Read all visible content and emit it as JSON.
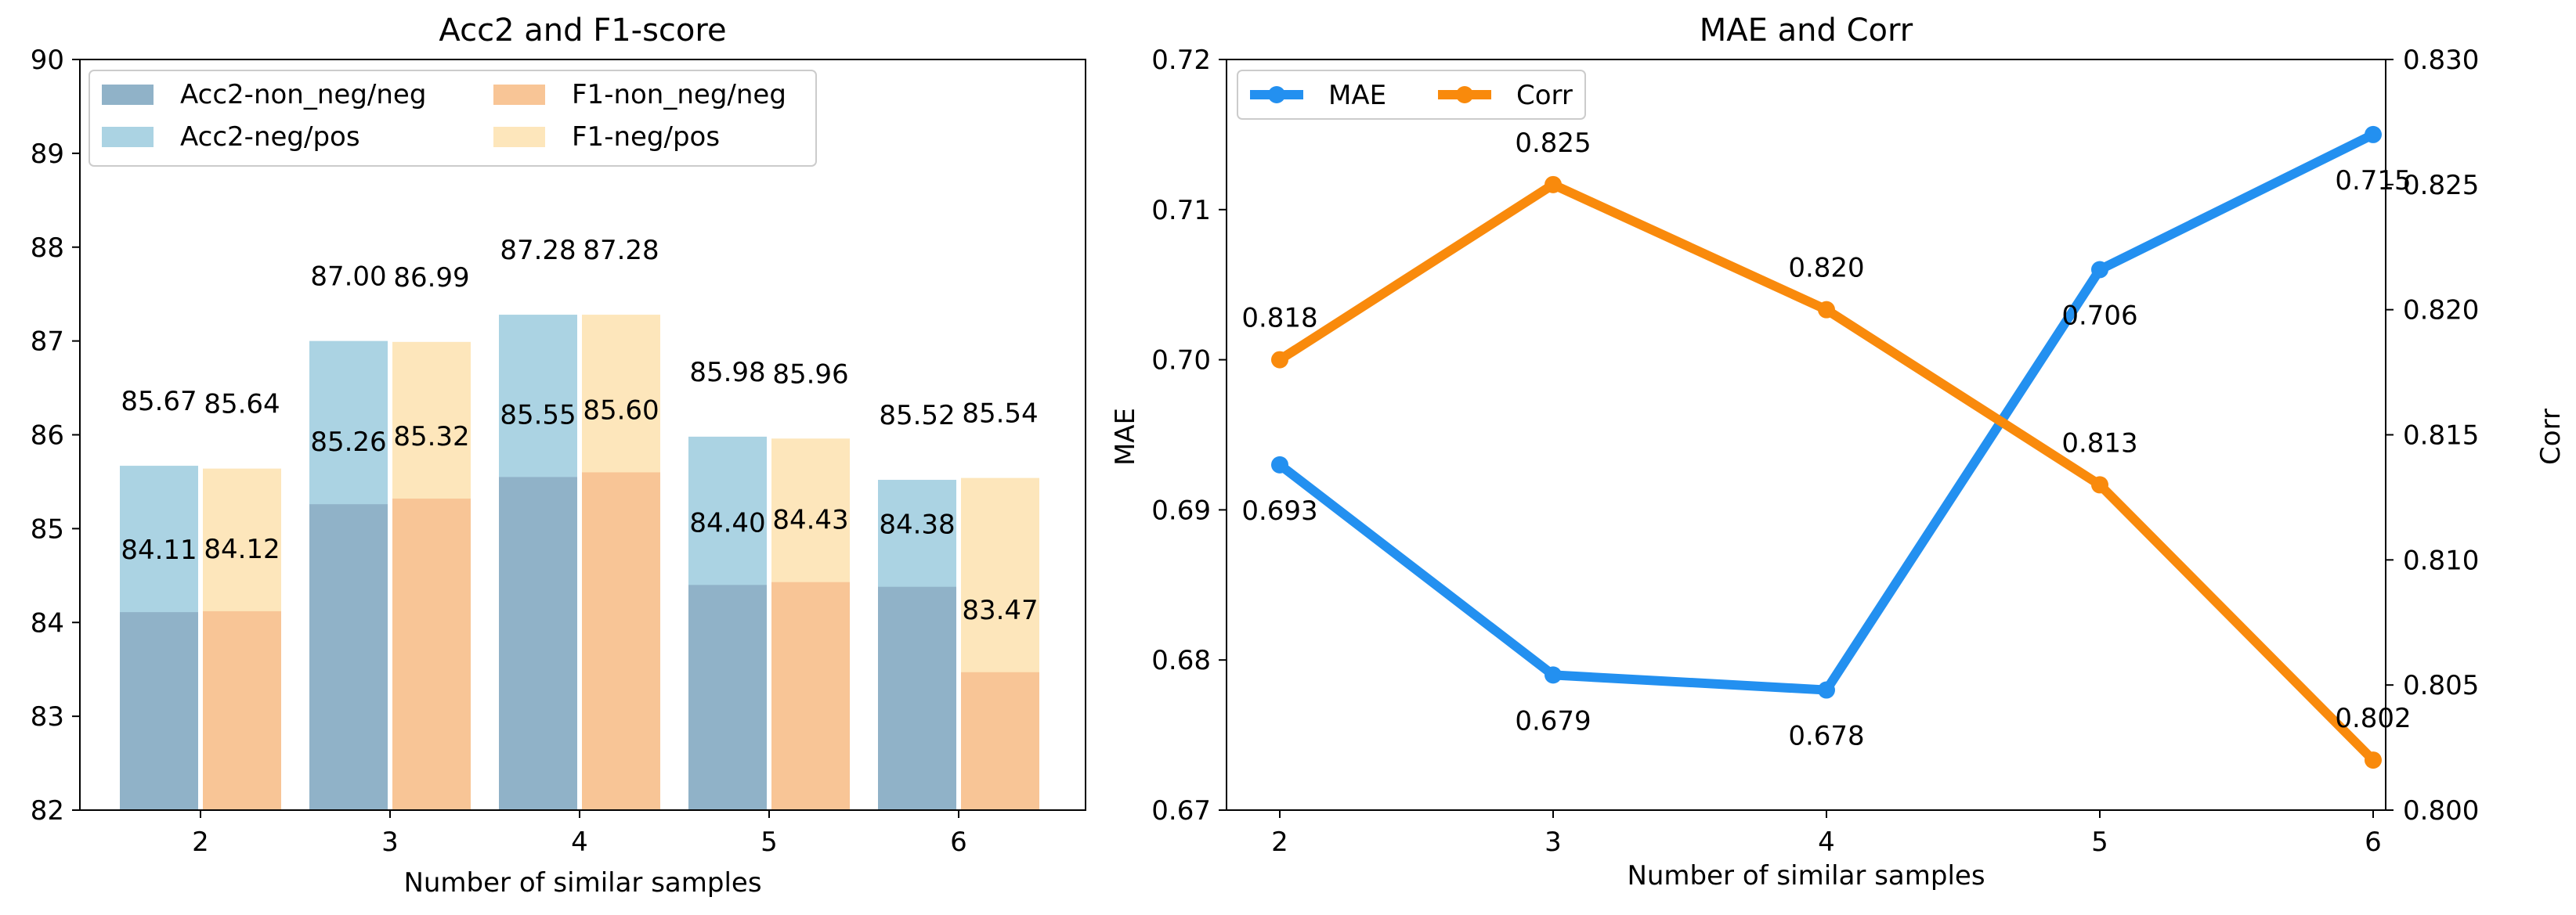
{
  "chart_data": [
    {
      "type": "bar",
      "title": "Acc2 and F1-score",
      "xlabel": "Number of similar samples",
      "ylabel": "",
      "ylim": [
        82,
        90
      ],
      "yticks": [
        82,
        83,
        84,
        85,
        86,
        87,
        88,
        89,
        90
      ],
      "categories": [
        "2",
        "3",
        "4",
        "5",
        "6"
      ],
      "series": [
        {
          "name": "Acc2-non_neg/neg",
          "color": "#90b2c8",
          "values": [
            84.11,
            85.26,
            85.55,
            84.4,
            84.38
          ]
        },
        {
          "name": "Acc2-neg/pos",
          "color": "#abd3e3",
          "values": [
            85.67,
            87.0,
            87.28,
            85.98,
            85.52
          ]
        },
        {
          "name": "F1-non_neg/neg",
          "color": "#f8c596",
          "values": [
            84.12,
            85.32,
            85.6,
            84.43,
            83.47
          ]
        },
        {
          "name": "F1-neg/pos",
          "color": "#fde6bb",
          "values": [
            85.64,
            86.99,
            87.28,
            85.96,
            85.54
          ]
        }
      ],
      "labels_upper": [
        [
          "85.67",
          "85.64"
        ],
        [
          "87.00",
          "86.99"
        ],
        [
          "87.28",
          "87.28"
        ],
        [
          "85.98",
          "85.96"
        ],
        [
          "85.52",
          "85.54"
        ]
      ],
      "labels_lower": [
        [
          "84.11",
          "84.12"
        ],
        [
          "85.26",
          "85.32"
        ],
        [
          "85.55",
          "85.60"
        ],
        [
          "84.40",
          "84.43"
        ],
        [
          "84.38",
          "83.47"
        ]
      ],
      "legend": "upper-left"
    },
    {
      "type": "line",
      "title": "MAE and Corr",
      "xlabel": "Number of similar samples",
      "ylabel_left": "MAE",
      "ylabel_right": "Corr",
      "x": [
        "2",
        "3",
        "4",
        "5",
        "6"
      ],
      "ylim_left": [
        0.67,
        0.72
      ],
      "yticks_left": [
        "0.67",
        "0.68",
        "0.69",
        "0.70",
        "0.71",
        "0.72"
      ],
      "ylim_right": [
        0.8,
        0.83
      ],
      "yticks_right": [
        "0.800",
        "0.805",
        "0.810",
        "0.815",
        "0.820",
        "0.825",
        "0.830"
      ],
      "series": [
        {
          "name": "MAE",
          "axis": "left",
          "color": "#2390f0",
          "values": [
            0.693,
            0.679,
            0.678,
            0.706,
            0.715
          ],
          "labels": [
            "0.693",
            "0.679",
            "0.678",
            "0.706",
            "0.715"
          ]
        },
        {
          "name": "Corr",
          "axis": "right",
          "color": "#f98a0c",
          "values": [
            0.818,
            0.825,
            0.82,
            0.813,
            0.802
          ],
          "labels": [
            "0.818",
            "0.825",
            "0.820",
            "0.813",
            "0.802"
          ]
        }
      ],
      "legend": "upper-left"
    }
  ]
}
